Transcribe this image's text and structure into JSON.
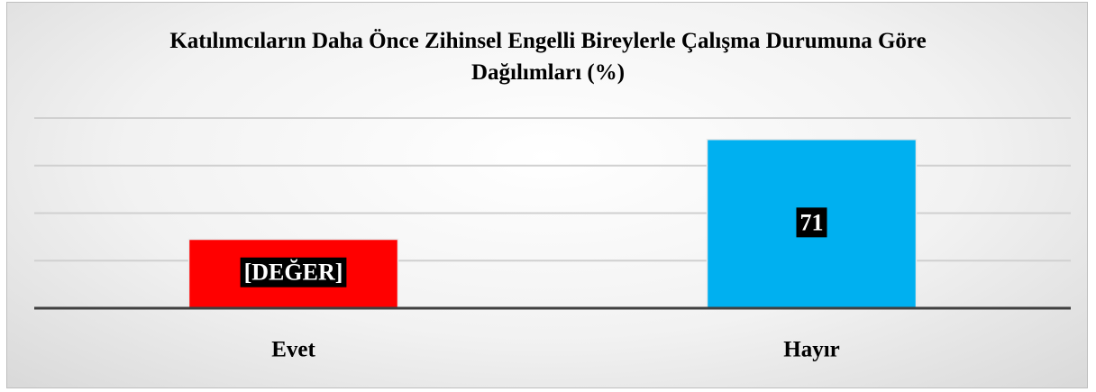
{
  "chart_data": {
    "type": "bar",
    "title": "Katılımcıların Daha Önce Zihinsel Engelli Bireylerle Çalışma Durumuna Göre Dağılımları (%)",
    "categories": [
      "Evet",
      "Hayır"
    ],
    "values": [
      29,
      71
    ],
    "value_labels": [
      "[DEĞER]",
      "71"
    ],
    "colors": [
      "#ff0000",
      "#00b0f0"
    ],
    "ylim": [
      0,
      80
    ],
    "yticks": [
      0,
      20,
      40,
      60,
      80
    ],
    "grid": true
  }
}
